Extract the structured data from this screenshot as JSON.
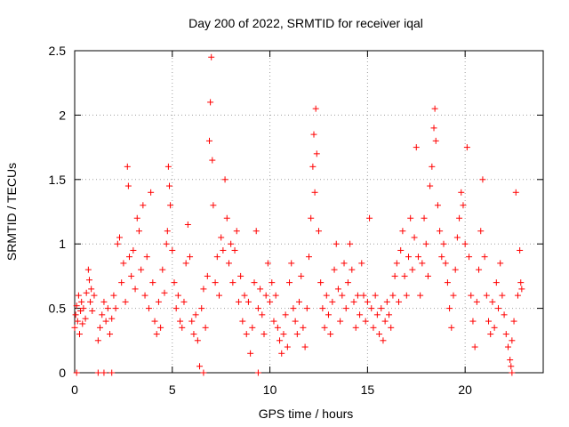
{
  "chart_data": {
    "type": "scatter",
    "title": "Day 200 of 2022, SRMTID for receiver iqal",
    "xlabel": "GPS time / hours",
    "ylabel": "SRMTID / TECUs",
    "xlim": [
      0,
      24
    ],
    "ylim": [
      0,
      2.5
    ],
    "x_ticks": [
      0,
      5,
      10,
      15,
      20
    ],
    "x_tick_labels": [
      "0",
      "5",
      "10",
      "15",
      "20"
    ],
    "y_ticks": [
      0,
      0.5,
      1,
      1.5,
      2,
      2.5
    ],
    "y_tick_labels": [
      "0",
      "0.5",
      "1",
      "1.5",
      "2",
      "2.5"
    ],
    "grid": true,
    "marker": "+",
    "color": "#ff0000",
    "series": [
      {
        "name": "SRMTID",
        "points": [
          [
            0.0,
            0.35
          ],
          [
            0.05,
            0.45
          ],
          [
            0.1,
            0.52
          ],
          [
            0.15,
            0.4
          ],
          [
            0.2,
            0.6
          ],
          [
            0.25,
            0.3
          ],
          [
            0.3,
            0.48
          ],
          [
            0.35,
            0.55
          ],
          [
            0.4,
            0.38
          ],
          [
            0.45,
            0.5
          ],
          [
            0.55,
            0.42
          ],
          [
            0.6,
            0.62
          ],
          [
            0.7,
            0.8
          ],
          [
            0.75,
            0.72
          ],
          [
            0.8,
            0.55
          ],
          [
            0.85,
            0.65
          ],
          [
            0.9,
            0.48
          ],
          [
            1.0,
            0.6
          ],
          [
            1.2,
            0.25
          ],
          [
            1.3,
            0.35
          ],
          [
            1.4,
            0.45
          ],
          [
            1.5,
            0.55
          ],
          [
            1.6,
            0.4
          ],
          [
            1.7,
            0.5
          ],
          [
            1.8,
            0.3
          ],
          [
            1.9,
            0.42
          ],
          [
            2.0,
            0.6
          ],
          [
            2.1,
            0.5
          ],
          [
            2.2,
            1.0
          ],
          [
            2.3,
            1.05
          ],
          [
            2.4,
            0.7
          ],
          [
            2.5,
            0.85
          ],
          [
            2.6,
            0.55
          ],
          [
            2.7,
            1.6
          ],
          [
            2.75,
            1.45
          ],
          [
            2.8,
            0.9
          ],
          [
            2.9,
            0.75
          ],
          [
            3.0,
            0.95
          ],
          [
            3.1,
            0.65
          ],
          [
            3.2,
            1.2
          ],
          [
            3.3,
            1.1
          ],
          [
            3.4,
            0.8
          ],
          [
            3.5,
            1.3
          ],
          [
            3.6,
            0.6
          ],
          [
            3.7,
            0.9
          ],
          [
            3.8,
            0.5
          ],
          [
            3.9,
            1.4
          ],
          [
            4.0,
            0.7
          ],
          [
            4.1,
            0.4
          ],
          [
            4.2,
            0.3
          ],
          [
            4.3,
            0.55
          ],
          [
            4.4,
            0.35
          ],
          [
            4.5,
            0.8
          ],
          [
            4.6,
            0.62
          ],
          [
            4.7,
            1.0
          ],
          [
            4.75,
            1.1
          ],
          [
            4.8,
            1.6
          ],
          [
            4.85,
            1.45
          ],
          [
            4.9,
            1.3
          ],
          [
            5.0,
            0.95
          ],
          [
            5.1,
            0.7
          ],
          [
            5.2,
            0.5
          ],
          [
            5.3,
            0.6
          ],
          [
            5.4,
            0.4
          ],
          [
            5.5,
            0.35
          ],
          [
            5.6,
            0.55
          ],
          [
            5.7,
            0.85
          ],
          [
            5.8,
            1.15
          ],
          [
            5.9,
            0.9
          ],
          [
            6.0,
            0.4
          ],
          [
            6.1,
            0.3
          ],
          [
            6.2,
            0.45
          ],
          [
            6.3,
            0.25
          ],
          [
            6.4,
            0.05
          ],
          [
            6.5,
            0.5
          ],
          [
            6.6,
            0.65
          ],
          [
            6.7,
            0.35
          ],
          [
            6.8,
            0.75
          ],
          [
            6.9,
            1.8
          ],
          [
            6.95,
            2.1
          ],
          [
            7.0,
            2.45
          ],
          [
            7.05,
            1.65
          ],
          [
            7.1,
            1.3
          ],
          [
            7.2,
            0.7
          ],
          [
            7.3,
            0.9
          ],
          [
            7.4,
            0.6
          ],
          [
            7.5,
            1.05
          ],
          [
            7.6,
            0.95
          ],
          [
            7.7,
            1.5
          ],
          [
            7.8,
            1.2
          ],
          [
            7.9,
            0.85
          ],
          [
            8.0,
            1.0
          ],
          [
            8.1,
            0.7
          ],
          [
            8.2,
            0.95
          ],
          [
            8.3,
            1.1
          ],
          [
            8.4,
            0.55
          ],
          [
            8.5,
            0.75
          ],
          [
            8.6,
            0.4
          ],
          [
            8.7,
            0.6
          ],
          [
            8.8,
            0.3
          ],
          [
            8.9,
            0.55
          ],
          [
            9.0,
            0.15
          ],
          [
            9.1,
            0.35
          ],
          [
            9.2,
            0.7
          ],
          [
            9.3,
            1.1
          ],
          [
            9.4,
            0.5
          ],
          [
            9.5,
            0.65
          ],
          [
            9.6,
            0.45
          ],
          [
            9.7,
            0.3
          ],
          [
            9.8,
            0.6
          ],
          [
            9.9,
            0.85
          ],
          [
            10.0,
            0.55
          ],
          [
            10.1,
            0.7
          ],
          [
            10.2,
            0.4
          ],
          [
            10.3,
            0.6
          ],
          [
            10.4,
            0.35
          ],
          [
            10.5,
            0.25
          ],
          [
            10.6,
            0.15
          ],
          [
            10.7,
            0.3
          ],
          [
            10.8,
            0.45
          ],
          [
            10.9,
            0.2
          ],
          [
            11.0,
            0.7
          ],
          [
            11.1,
            0.85
          ],
          [
            11.2,
            0.5
          ],
          [
            11.3,
            0.4
          ],
          [
            11.4,
            0.3
          ],
          [
            11.5,
            0.55
          ],
          [
            11.6,
            0.75
          ],
          [
            11.7,
            0.35
          ],
          [
            11.8,
            0.2
          ],
          [
            11.9,
            0.5
          ],
          [
            12.0,
            0.9
          ],
          [
            12.1,
            1.2
          ],
          [
            12.2,
            1.6
          ],
          [
            12.25,
            1.85
          ],
          [
            12.3,
            1.4
          ],
          [
            12.35,
            2.05
          ],
          [
            12.4,
            1.7
          ],
          [
            12.5,
            1.1
          ],
          [
            12.6,
            0.7
          ],
          [
            12.7,
            0.5
          ],
          [
            12.8,
            0.35
          ],
          [
            12.9,
            0.6
          ],
          [
            13.0,
            0.45
          ],
          [
            13.1,
            0.3
          ],
          [
            13.2,
            0.55
          ],
          [
            13.3,
            0.8
          ],
          [
            13.4,
            1.0
          ],
          [
            13.5,
            0.65
          ],
          [
            13.6,
            0.4
          ],
          [
            13.7,
            0.6
          ],
          [
            13.8,
            0.85
          ],
          [
            13.9,
            0.5
          ],
          [
            14.0,
            0.7
          ],
          [
            14.1,
            1.0
          ],
          [
            14.2,
            0.8
          ],
          [
            14.3,
            0.55
          ],
          [
            14.4,
            0.35
          ],
          [
            14.5,
            0.6
          ],
          [
            14.6,
            0.45
          ],
          [
            14.7,
            0.85
          ],
          [
            14.8,
            0.6
          ],
          [
            14.9,
            0.4
          ],
          [
            15.0,
            0.55
          ],
          [
            15.1,
            1.2
          ],
          [
            15.2,
            0.5
          ],
          [
            15.3,
            0.35
          ],
          [
            15.4,
            0.6
          ],
          [
            15.5,
            0.45
          ],
          [
            15.6,
            0.3
          ],
          [
            15.7,
            0.5
          ],
          [
            15.8,
            0.25
          ],
          [
            15.9,
            0.4
          ],
          [
            16.0,
            0.55
          ],
          [
            16.1,
            0.45
          ],
          [
            16.2,
            0.35
          ],
          [
            16.3,
            0.6
          ],
          [
            16.4,
            0.75
          ],
          [
            16.5,
            0.85
          ],
          [
            16.6,
            0.55
          ],
          [
            16.7,
            0.95
          ],
          [
            16.8,
            1.1
          ],
          [
            16.9,
            0.75
          ],
          [
            17.0,
            0.6
          ],
          [
            17.1,
            0.9
          ],
          [
            17.2,
            1.2
          ],
          [
            17.3,
            0.8
          ],
          [
            17.4,
            1.05
          ],
          [
            17.5,
            1.75
          ],
          [
            17.6,
            0.9
          ],
          [
            17.7,
            0.6
          ],
          [
            17.8,
            0.85
          ],
          [
            17.9,
            1.2
          ],
          [
            18.0,
            1.0
          ],
          [
            18.1,
            0.75
          ],
          [
            18.2,
            1.45
          ],
          [
            18.3,
            1.6
          ],
          [
            18.4,
            1.9
          ],
          [
            18.45,
            2.05
          ],
          [
            18.5,
            1.8
          ],
          [
            18.6,
            1.3
          ],
          [
            18.7,
            1.1
          ],
          [
            18.8,
            0.9
          ],
          [
            18.9,
            1.0
          ],
          [
            19.0,
            0.85
          ],
          [
            19.1,
            0.7
          ],
          [
            19.2,
            0.5
          ],
          [
            19.3,
            0.35
          ],
          [
            19.4,
            0.6
          ],
          [
            19.5,
            0.8
          ],
          [
            19.6,
            1.05
          ],
          [
            19.7,
            1.2
          ],
          [
            19.8,
            1.4
          ],
          [
            19.9,
            1.3
          ],
          [
            20.0,
            1.0
          ],
          [
            20.1,
            1.75
          ],
          [
            20.2,
            0.9
          ],
          [
            20.3,
            0.6
          ],
          [
            20.4,
            0.4
          ],
          [
            20.5,
            0.2
          ],
          [
            20.6,
            0.55
          ],
          [
            20.7,
            0.8
          ],
          [
            20.8,
            1.1
          ],
          [
            20.9,
            1.5
          ],
          [
            21.0,
            0.9
          ],
          [
            21.1,
            0.6
          ],
          [
            21.2,
            0.4
          ],
          [
            21.3,
            0.3
          ],
          [
            21.4,
            0.55
          ],
          [
            21.5,
            0.35
          ],
          [
            21.6,
            0.7
          ],
          [
            21.7,
            0.5
          ],
          [
            21.8,
            0.85
          ],
          [
            21.9,
            0.6
          ],
          [
            22.0,
            0.45
          ],
          [
            22.1,
            0.3
          ],
          [
            22.2,
            0.2
          ],
          [
            22.3,
            0.1
          ],
          [
            22.35,
            0.05
          ],
          [
            22.4,
            0.25
          ],
          [
            22.5,
            0.4
          ],
          [
            22.6,
            1.4
          ],
          [
            22.7,
            0.6
          ],
          [
            22.8,
            0.95
          ],
          [
            22.85,
            0.7
          ],
          [
            22.9,
            0.65
          ],
          [
            0.1,
            0.0
          ],
          [
            1.2,
            0.0
          ],
          [
            1.5,
            0.0
          ],
          [
            1.9,
            0.0
          ],
          [
            6.6,
            0.0
          ],
          [
            9.4,
            0.0
          ],
          [
            22.4,
            0.0
          ]
        ]
      }
    ]
  }
}
